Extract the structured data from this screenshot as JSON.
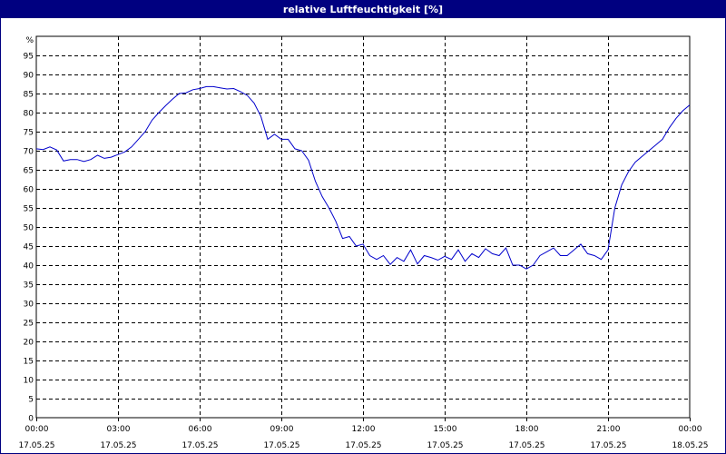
{
  "window": {
    "title": "relative Luftfeuchtigkeit [%]"
  },
  "colors": {
    "title_bg": "#000080",
    "title_fg": "#ffffff",
    "series": "#0000cc",
    "grid": "#000000"
  },
  "chart_data": {
    "type": "line",
    "title": "relative Luftfeuchtigkeit [%]",
    "ylabel": "%",
    "ylim": [
      0,
      100
    ],
    "grid": true,
    "y_ticks": [
      0,
      5,
      10,
      15,
      20,
      25,
      30,
      35,
      40,
      45,
      50,
      55,
      60,
      65,
      70,
      75,
      80,
      85,
      90,
      95
    ],
    "x_ticks": [
      {
        "time": "00:00",
        "date": "17.05.25"
      },
      {
        "time": "03:00",
        "date": "17.05.25"
      },
      {
        "time": "06:00",
        "date": "17.05.25"
      },
      {
        "time": "09:00",
        "date": "17.05.25"
      },
      {
        "time": "12:00",
        "date": "17.05.25"
      },
      {
        "time": "15:00",
        "date": "17.05.25"
      },
      {
        "time": "18:00",
        "date": "17.05.25"
      },
      {
        "time": "21:00",
        "date": "17.05.25"
      },
      {
        "time": "00:00",
        "date": "18.05.25"
      }
    ],
    "x_range": [
      "17.05.25 00:00",
      "18.05.25 00:00"
    ],
    "series": [
      {
        "points": [
          [
            "17.05.25 00:00",
            70.5
          ],
          [
            "17.05.25 00:15",
            70.3
          ],
          [
            "17.05.25 00:30",
            71.0
          ],
          [
            "17.05.25 00:45",
            70.2
          ],
          [
            "17.05.25 01:00",
            67.3
          ],
          [
            "17.05.25 01:15",
            67.7
          ],
          [
            "17.05.25 01:30",
            67.7
          ],
          [
            "17.05.25 01:45",
            67.2
          ],
          [
            "17.05.25 02:00",
            67.7
          ],
          [
            "17.05.25 02:15",
            68.8
          ],
          [
            "17.05.25 02:30",
            68.0
          ],
          [
            "17.05.25 02:45",
            68.3
          ],
          [
            "17.05.25 03:00",
            69.0
          ],
          [
            "17.05.25 03:15",
            69.7
          ],
          [
            "17.05.25 03:30",
            71.0
          ],
          [
            "17.05.25 03:45",
            73.0
          ],
          [
            "17.05.25 04:00",
            75.0
          ],
          [
            "17.05.25 04:15",
            78.0
          ],
          [
            "17.05.25 04:30",
            80.0
          ],
          [
            "17.05.25 04:45",
            81.8
          ],
          [
            "17.05.25 05:00",
            83.5
          ],
          [
            "17.05.25 05:15",
            85.0
          ],
          [
            "17.05.25 05:30",
            85.2
          ],
          [
            "17.05.25 05:45",
            86.0
          ],
          [
            "17.05.25 06:00",
            86.3
          ],
          [
            "17.05.25 06:15",
            86.8
          ],
          [
            "17.05.25 06:30",
            86.8
          ],
          [
            "17.05.25 06:45",
            86.5
          ],
          [
            "17.05.25 07:00",
            86.2
          ],
          [
            "17.05.25 07:15",
            86.3
          ],
          [
            "17.05.25 07:30",
            85.5
          ],
          [
            "17.05.25 07:45",
            84.5
          ],
          [
            "17.05.25 08:00",
            82.5
          ],
          [
            "17.05.25 08:15",
            79.0
          ],
          [
            "17.05.25 08:30",
            73.0
          ],
          [
            "17.05.25 08:45",
            74.3
          ],
          [
            "17.05.25 09:00",
            73.0
          ],
          [
            "17.05.25 09:15",
            73.0
          ],
          [
            "17.05.25 09:30",
            70.5
          ],
          [
            "17.05.25 09:45",
            70.0
          ],
          [
            "17.05.25 10:00",
            67.5
          ],
          [
            "17.05.25 10:15",
            62.0
          ],
          [
            "17.05.25 10:30",
            58.0
          ],
          [
            "17.05.25 10:45",
            55.0
          ],
          [
            "17.05.25 11:00",
            51.5
          ],
          [
            "17.05.25 11:15",
            47.0
          ],
          [
            "17.05.25 11:30",
            47.5
          ],
          [
            "17.05.25 11:45",
            45.0
          ],
          [
            "17.05.25 12:00",
            45.5
          ],
          [
            "17.05.25 12:15",
            42.5
          ],
          [
            "17.05.25 12:30",
            41.5
          ],
          [
            "17.05.25 12:45",
            42.5
          ],
          [
            "17.05.25 13:00",
            40.2
          ],
          [
            "17.05.25 13:15",
            42.0
          ],
          [
            "17.05.25 13:30",
            41.0
          ],
          [
            "17.05.25 13:45",
            44.0
          ],
          [
            "17.05.25 14:00",
            40.3
          ],
          [
            "17.05.25 14:15",
            42.5
          ],
          [
            "17.05.25 14:30",
            42.0
          ],
          [
            "17.05.25 14:45",
            41.3
          ],
          [
            "17.05.25 15:00",
            42.3
          ],
          [
            "17.05.25 15:15",
            41.5
          ],
          [
            "17.05.25 15:30",
            44.0
          ],
          [
            "17.05.25 15:45",
            41.0
          ],
          [
            "17.05.25 16:00",
            43.0
          ],
          [
            "17.05.25 16:15",
            42.0
          ],
          [
            "17.05.25 16:30",
            44.3
          ],
          [
            "17.05.25 16:45",
            43.0
          ],
          [
            "17.05.25 17:00",
            42.5
          ],
          [
            "17.05.25 17:15",
            44.5
          ],
          [
            "17.05.25 17:30",
            40.0
          ],
          [
            "17.05.25 17:45",
            40.0
          ],
          [
            "17.05.25 18:00",
            39.0
          ],
          [
            "17.05.25 18:15",
            40.0
          ],
          [
            "17.05.25 18:30",
            42.5
          ],
          [
            "17.05.25 18:45",
            43.5
          ],
          [
            "17.05.25 19:00",
            44.5
          ],
          [
            "17.05.25 19:15",
            42.5
          ],
          [
            "17.05.25 19:30",
            42.5
          ],
          [
            "17.05.25 19:45",
            44.0
          ],
          [
            "17.05.25 20:00",
            45.5
          ],
          [
            "17.05.25 20:15",
            43.0
          ],
          [
            "17.05.25 20:30",
            42.5
          ],
          [
            "17.05.25 20:45",
            41.5
          ],
          [
            "17.05.25 21:00",
            44.0
          ],
          [
            "17.05.25 21:15",
            55.0
          ],
          [
            "17.05.25 21:30",
            61.0
          ],
          [
            "17.05.25 21:45",
            64.5
          ],
          [
            "17.05.25 22:00",
            67.0
          ],
          [
            "17.05.25 22:15",
            68.5
          ],
          [
            "17.05.25 22:30",
            70.0
          ],
          [
            "17.05.25 22:45",
            71.5
          ],
          [
            "17.05.25 23:00",
            73.0
          ],
          [
            "17.05.25 23:15",
            76.0
          ],
          [
            "17.05.25 23:30",
            78.5
          ],
          [
            "17.05.25 23:45",
            80.5
          ],
          [
            "18.05.25 00:00",
            82.0
          ]
        ]
      }
    ]
  }
}
